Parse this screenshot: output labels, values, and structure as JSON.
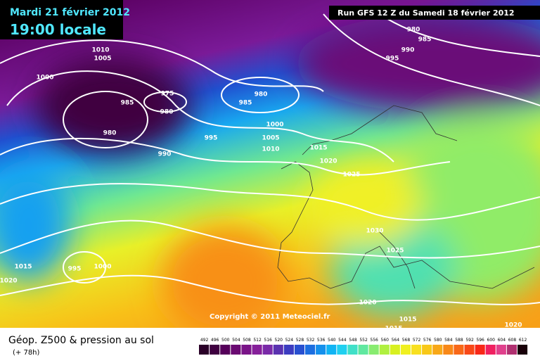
{
  "header": {
    "date": "Mardi 21 février 2012",
    "time": "19:00 locale",
    "run": "Run GFS 12 Z du Samedi 18 février 2012"
  },
  "copyright": "Copyright © 2011 Meteociel.fr",
  "legend": {
    "title": "Géop. Z500 & pression au sol",
    "lead": "(+ 78h)",
    "levels": [
      492,
      496,
      500,
      504,
      508,
      512,
      516,
      520,
      524,
      528,
      532,
      536,
      540,
      544,
      548,
      552,
      556,
      560,
      564,
      568,
      572,
      576,
      580,
      584,
      588,
      592,
      596,
      600,
      604,
      608,
      612
    ],
    "colors": [
      "#2a0028",
      "#3f0040",
      "#55005a",
      "#6a0a72",
      "#7a1488",
      "#86209a",
      "#7a2aa8",
      "#5a32b0",
      "#3c3cc0",
      "#2850d0",
      "#1c6ee0",
      "#1490ec",
      "#10b4f4",
      "#20d0f0",
      "#40e0c8",
      "#60e8a0",
      "#88ec70",
      "#b0f040",
      "#d8f020",
      "#f0f020",
      "#f8e020",
      "#f8c818",
      "#f8a818",
      "#f88818",
      "#f86818",
      "#f84818",
      "#f82818",
      "#f02060",
      "#e0408c",
      "#b03070",
      "#180008"
    ]
  },
  "isobar_labels": [
    980,
    985,
    990,
    995,
    1010,
    1005,
    1000,
    975,
    980,
    985,
    985,
    980,
    1000,
    980,
    995,
    1005,
    1010,
    1015,
    990,
    1020,
    1025,
    1030,
    1025,
    1015,
    995,
    1000,
    1020,
    1020,
    1015,
    1015,
    1020
  ]
}
